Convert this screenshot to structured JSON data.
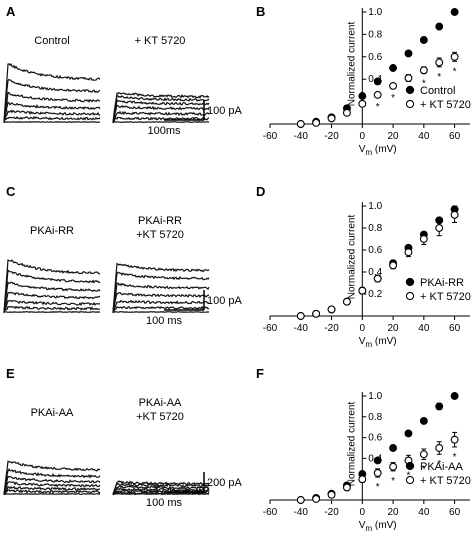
{
  "panels": [
    {
      "trace_label": "A",
      "iv_label": "B",
      "condition_left": [
        "Control"
      ],
      "condition_right": [
        "+ KT 5720"
      ],
      "scale_current": "100 pA",
      "scale_time": "100ms",
      "left_amplitudes": [
        0.0,
        0.06,
        0.14,
        0.24,
        0.37,
        0.54,
        0.75
      ],
      "right_amplitudes": [
        0.0,
        0.05,
        0.12,
        0.2,
        0.27,
        0.33,
        0.38
      ]
    },
    {
      "trace_label": "C",
      "iv_label": "D",
      "condition_left": [
        "PKAi-RR"
      ],
      "condition_right": [
        "PKAi-RR",
        "+KT 5720"
      ],
      "scale_current": "100 pA",
      "scale_time": "100 ms",
      "left_amplitudes": [
        0.0,
        0.06,
        0.14,
        0.25,
        0.38,
        0.53,
        0.68
      ],
      "right_amplitudes": [
        0.0,
        0.06,
        0.14,
        0.24,
        0.36,
        0.5,
        0.62
      ]
    },
    {
      "trace_label": "E",
      "iv_label": "F",
      "condition_left": [
        "PKAi-AA"
      ],
      "condition_right": [
        "PKAi-AA",
        "+KT 5720"
      ],
      "scale_current": "200 pA",
      "scale_time": "100 ms",
      "left_amplitudes": [
        0.0,
        0.05,
        0.11,
        0.19,
        0.28,
        0.4,
        0.55
      ],
      "right_amplitudes": [
        0.0,
        0.02,
        0.05,
        0.08,
        0.12,
        0.16,
        0.2
      ]
    }
  ],
  "chart_data": [
    {
      "type": "scatter",
      "panel": "B",
      "title": "",
      "xlabel": "Vm (mV)",
      "ylabel": "Normalized current",
      "xlim": [
        -60,
        70
      ],
      "ylim": [
        0,
        1.0
      ],
      "x_ticks": [
        -60,
        -40,
        -20,
        0,
        20,
        40,
        60
      ],
      "y_ticks": [
        0.4,
        0.6,
        0.8,
        1.0
      ],
      "x": [
        -40,
        -30,
        -20,
        -10,
        0,
        10,
        20,
        30,
        40,
        50,
        60
      ],
      "legend_position": "bottom-right",
      "series": [
        {
          "name": "Control",
          "marker": "filled-circle",
          "values": [
            0.0,
            0.02,
            0.06,
            0.14,
            0.25,
            0.38,
            0.5,
            0.63,
            0.75,
            0.87,
            1.0
          ],
          "errors": [
            0.01,
            0.01,
            0.01,
            0.01,
            0.01,
            0.01,
            0.01,
            0.01,
            0.01,
            0.01,
            0.01
          ]
        },
        {
          "name": "+ KT 5720",
          "marker": "open-circle",
          "values": [
            0.0,
            0.01,
            0.05,
            0.1,
            0.18,
            0.26,
            0.34,
            0.41,
            0.48,
            0.55,
            0.6
          ],
          "errors": [
            0.01,
            0.01,
            0.01,
            0.01,
            0.02,
            0.02,
            0.02,
            0.03,
            0.03,
            0.04,
            0.04
          ]
        }
      ],
      "significance_marker": "*",
      "significant_x": [
        10,
        20,
        30,
        40,
        50,
        60
      ]
    },
    {
      "type": "scatter",
      "panel": "D",
      "title": "",
      "xlabel": "Vm (mV)",
      "ylabel": "Normalized current",
      "xlim": [
        -60,
        70
      ],
      "ylim": [
        0,
        1.0
      ],
      "x_ticks": [
        -60,
        -40,
        -20,
        0,
        20,
        40,
        60
      ],
      "y_ticks": [
        0.2,
        0.4,
        0.6,
        0.8,
        1.0
      ],
      "x": [
        -40,
        -30,
        -20,
        -10,
        0,
        10,
        20,
        30,
        40,
        50,
        60
      ],
      "legend_position": "bottom-right",
      "series": [
        {
          "name": "PKAi-RR",
          "marker": "filled-circle",
          "values": [
            0.0,
            0.02,
            0.06,
            0.13,
            0.23,
            0.34,
            0.48,
            0.62,
            0.74,
            0.87,
            0.97
          ],
          "errors": [
            0.01,
            0.01,
            0.01,
            0.01,
            0.02,
            0.02,
            0.02,
            0.02,
            0.02,
            0.02,
            0.03
          ]
        },
        {
          "name": "+ KT 5720",
          "marker": "open-circle",
          "values": [
            0.0,
            0.02,
            0.06,
            0.13,
            0.23,
            0.34,
            0.46,
            0.58,
            0.7,
            0.8,
            0.92
          ],
          "errors": [
            0.01,
            0.01,
            0.01,
            0.02,
            0.03,
            0.03,
            0.03,
            0.04,
            0.05,
            0.07,
            0.07
          ]
        }
      ]
    },
    {
      "type": "scatter",
      "panel": "F",
      "title": "",
      "xlabel": "Vm (mV)",
      "ylabel": "Normalized current",
      "xlim": [
        -60,
        70
      ],
      "ylim": [
        0,
        1.0
      ],
      "x_ticks": [
        -60,
        -40,
        -20,
        0,
        20,
        40,
        60
      ],
      "y_ticks": [
        0.4,
        0.6,
        0.8,
        1.0
      ],
      "x": [
        -40,
        -30,
        -20,
        -10,
        0,
        10,
        20,
        30,
        40,
        50,
        60
      ],
      "legend_position": "bottom-right",
      "series": [
        {
          "name": "PKAi-AA",
          "marker": "filled-circle",
          "values": [
            0.0,
            0.02,
            0.06,
            0.14,
            0.25,
            0.38,
            0.5,
            0.64,
            0.76,
            0.9,
            1.0
          ],
          "errors": [
            0.01,
            0.01,
            0.01,
            0.01,
            0.01,
            0.01,
            0.01,
            0.01,
            0.01,
            0.03,
            0.01
          ]
        },
        {
          "name": "+ KT 5720",
          "marker": "open-circle",
          "values": [
            0.0,
            0.01,
            0.05,
            0.12,
            0.2,
            0.26,
            0.32,
            0.38,
            0.44,
            0.5,
            0.58
          ],
          "errors": [
            0.01,
            0.01,
            0.01,
            0.02,
            0.03,
            0.04,
            0.04,
            0.05,
            0.05,
            0.06,
            0.07
          ]
        }
      ],
      "significance_marker": "*",
      "significant_x": [
        10,
        20,
        30,
        40,
        50,
        60
      ]
    }
  ]
}
